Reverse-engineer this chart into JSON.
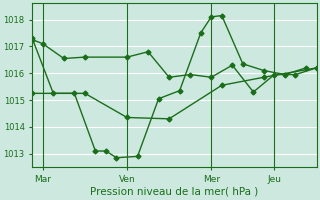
{
  "bg_color": "#cce8df",
  "grid_color": "#ffffff",
  "line_color": "#1a6e1a",
  "marker_color": "#1a6e1a",
  "xlabel": "Pression niveau de la mer( hPa )",
  "xlabel_color": "#1a6e1a",
  "tick_color": "#1a6e1a",
  "ylim": [
    1012.5,
    1018.6
  ],
  "yticks": [
    1013,
    1014,
    1015,
    1016,
    1017,
    1018
  ],
  "xtick_labels": [
    "Mar",
    "Ven",
    "Mer",
    "Jeu"
  ],
  "xtick_positions": [
    1,
    9,
    17,
    23
  ],
  "vline_positions": [
    1,
    9,
    17,
    23
  ],
  "xlim": [
    0,
    27
  ],
  "series1_x": [
    0,
    1,
    3,
    5,
    9,
    11,
    13,
    15,
    17,
    19,
    21,
    23,
    25,
    27
  ],
  "series1_y": [
    1017.25,
    1017.1,
    1016.55,
    1016.6,
    1016.6,
    1016.8,
    1015.85,
    1015.95,
    1015.85,
    1016.3,
    1015.3,
    1015.95,
    1015.95,
    1016.2
  ],
  "series2_x": [
    0,
    2,
    4,
    6,
    7,
    8,
    10,
    12,
    14,
    16,
    17,
    18,
    20,
    22,
    24,
    26
  ],
  "series2_y": [
    1017.3,
    1015.25,
    1015.25,
    1013.1,
    1013.1,
    1012.85,
    1012.9,
    1015.05,
    1015.35,
    1017.5,
    1018.1,
    1018.15,
    1016.35,
    1016.1,
    1015.95,
    1016.2
  ],
  "series3_x": [
    0,
    5,
    9,
    13,
    18,
    22,
    27
  ],
  "series3_y": [
    1015.25,
    1015.25,
    1014.35,
    1014.3,
    1015.55,
    1015.85,
    1016.2
  ]
}
